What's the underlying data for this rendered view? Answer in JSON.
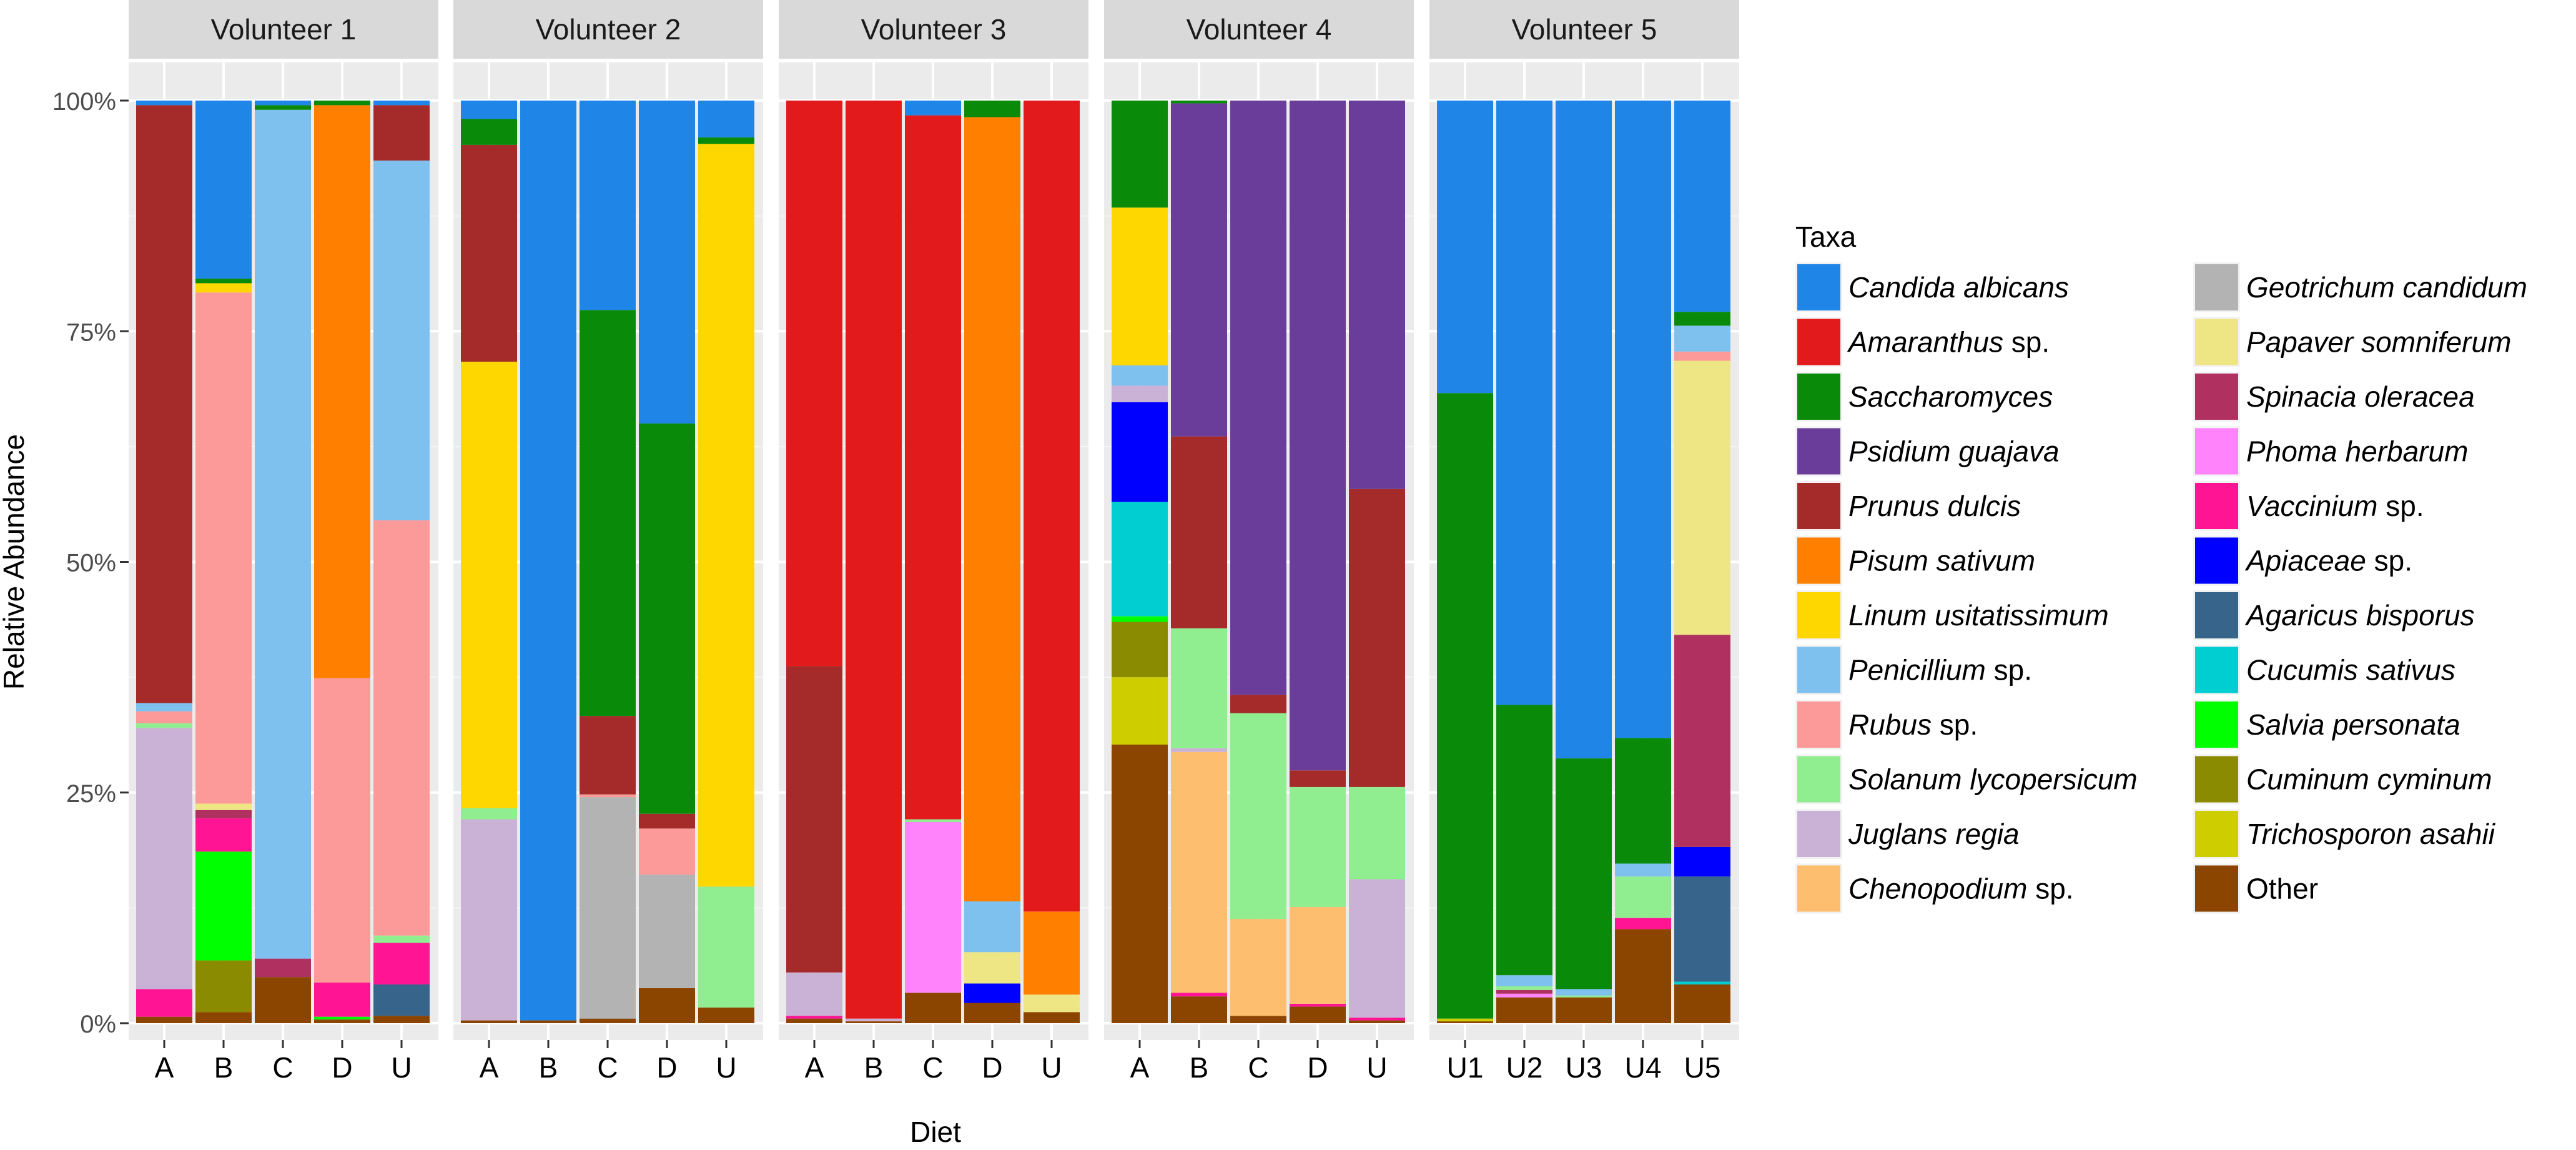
{
  "chart_data": {
    "type": "bar",
    "stacked": true,
    "facets": [
      "Volunteer 1",
      "Volunteer 2",
      "Volunteer 3",
      "Volunteer 4",
      "Volunteer 5"
    ],
    "categories": [
      [
        "A",
        "B",
        "C",
        "D",
        "U"
      ],
      [
        "A",
        "B",
        "C",
        "D",
        "U"
      ],
      [
        "A",
        "B",
        "C",
        "D",
        "U"
      ],
      [
        "A",
        "B",
        "C",
        "D",
        "U"
      ],
      [
        "U1",
        "U2",
        "U3",
        "U4",
        "U5"
      ]
    ],
    "xlabel": "Diet",
    "ylabel": "Relative Abundance",
    "ylim": [
      0,
      100
    ],
    "yticks": [
      "0%",
      "25%",
      "50%",
      "75%",
      "100%"
    ],
    "grid": true,
    "legend_title": "Taxa",
    "legend_position": "right",
    "taxa": [
      {
        "name": "Candida albicans",
        "italic": "Candida albicans",
        "suffix": "",
        "color": "#1F86E8"
      },
      {
        "name": "Amaranthus sp.",
        "italic": "Amaranthus",
        "suffix": " sp.",
        "color": "#E31A1C"
      },
      {
        "name": "Saccharomyces",
        "italic": "Saccharomyces",
        "suffix": "",
        "color": "#098B09"
      },
      {
        "name": "Psidium guajava",
        "italic": "Psidium guajava",
        "suffix": "",
        "color": "#6A3D9A"
      },
      {
        "name": "Prunus dulcis",
        "italic": "Prunus dulcis",
        "suffix": "",
        "color": "#A52A2A"
      },
      {
        "name": "Pisum sativum",
        "italic": "Pisum sativum",
        "suffix": "",
        "color": "#FF7F00"
      },
      {
        "name": "Linum usitatissimum",
        "italic": "Linum usitatissimum",
        "suffix": "",
        "color": "#FFD700"
      },
      {
        "name": "Penicillium sp.",
        "italic": "Penicillium",
        "suffix": " sp.",
        "color": "#7EC0EE"
      },
      {
        "name": "Rubus sp.",
        "italic": "Rubus",
        "suffix": " sp.",
        "color": "#FB9A99"
      },
      {
        "name": "Solanum lycopersicum",
        "italic": "Solanum lycopersicum",
        "suffix": "",
        "color": "#90EE90"
      },
      {
        "name": "Juglans regia",
        "italic": "Juglans regia",
        "suffix": "",
        "color": "#CAB2D6"
      },
      {
        "name": "Chenopodium sp.",
        "italic": "Chenopodium",
        "suffix": " sp.",
        "color": "#FDBF6F"
      },
      {
        "name": "Geotrichum candidum",
        "italic": "Geotrichum candidum",
        "suffix": "",
        "color": "#B3B3B3"
      },
      {
        "name": "Papaver somniferum",
        "italic": "Papaver somniferum",
        "suffix": "",
        "color": "#EEE685"
      },
      {
        "name": "Spinacia oleracea",
        "italic": "Spinacia oleracea",
        "suffix": "",
        "color": "#B03060"
      },
      {
        "name": "Phoma herbarum",
        "italic": "Phoma herbarum",
        "suffix": "",
        "color": "#FF83FA"
      },
      {
        "name": "Vaccinium sp.",
        "italic": "Vaccinium",
        "suffix": " sp.",
        "color": "#FF1493"
      },
      {
        "name": "Apiaceae sp.",
        "italic": "Apiaceae",
        "suffix": " sp.",
        "color": "#0000FF"
      },
      {
        "name": "Agaricus bisporus",
        "italic": "Agaricus bisporus",
        "suffix": "",
        "color": "#36648B"
      },
      {
        "name": "Cucumis sativus",
        "italic": "Cucumis sativus",
        "suffix": "",
        "color": "#00CED1"
      },
      {
        "name": "Salvia personata",
        "italic": "Salvia personata",
        "suffix": "",
        "color": "#00FF00"
      },
      {
        "name": "Cuminum cyminum",
        "italic": "Cuminum cyminum",
        "suffix": "",
        "color": "#8B8B00"
      },
      {
        "name": "Trichosporon asahii",
        "italic": "Trichosporon asahii",
        "suffix": "",
        "color": "#CDCD00"
      },
      {
        "name": "Other",
        "italic": "",
        "suffix": "Other",
        "color": "#8B4500"
      }
    ],
    "bars": [
      [
        {
          "Other": 0.7,
          "Vaccinium sp.": 3.0,
          "Juglans regia": 28.3,
          "Rubus sp.": 1.3,
          "Solanum lycopersicum": 0.5,
          "Penicillium sp.": 0.9,
          "Prunus dulcis": 64.8,
          "Candida albicans": 0.5
        },
        {
          "Other": 1.2,
          "Cuminum cyminum": 5.6,
          "Salvia personata": 11.8,
          "Vaccinium sp.": 3.6,
          "Spinacia oleracea": 0.9,
          "Rubus sp.": 55.4,
          "Papaver somniferum": 0.7,
          "Linum usitatissimum": 1.0,
          "Saccharomyces": 0.5,
          "Candida albicans": 19.3
        },
        {
          "Other": 5.0,
          "Spinacia oleracea": 2.0,
          "Penicillium sp.": 92.0,
          "Saccharomyces": 0.5,
          "Candida albicans": 0.5
        },
        {
          "Other": 0.4,
          "Salvia personata": 0.3,
          "Vaccinium sp.": 3.7,
          "Rubus sp.": 33.0,
          "Pisum sativum": 62.1,
          "Saccharomyces": 0.5
        },
        {
          "Other": 0.8,
          "Agaricus bisporus": 3.4,
          "Vaccinium sp.": 4.5,
          "Solanum lycopersicum": 0.8,
          "Rubus sp.": 45.0,
          "Penicillium sp.": 39.0,
          "Prunus dulcis": 6.0,
          "Candida albicans": 0.5
        }
      ],
      [
        {
          "Other": 0.3,
          "Juglans regia": 21.8,
          "Solanum lycopersicum": 1.2,
          "Linum usitatissimum": 48.4,
          "Prunus dulcis": 23.5,
          "Saccharomyces": 2.8,
          "Candida albicans": 2.0
        },
        {
          "Other": 0.3,
          "Candida albicans": 99.7
        },
        {
          "Other": 0.5,
          "Geotrichum candidum": 24.0,
          "Rubus sp.": 0.3,
          "Prunus dulcis": 8.5,
          "Saccharomyces": 44.0,
          "Candida albicans": 22.7
        },
        {
          "Other": 3.8,
          "Geotrichum candidum": 12.3,
          "Rubus sp.": 5.0,
          "Prunus dulcis": 1.6,
          "Saccharomyces": 42.3,
          "Candida albicans": 35.0
        },
        {
          "Other": 1.7,
          "Solanum lycopersicum": 13.1,
          "Linum usitatissimum": 80.5,
          "Saccharomyces": 0.7,
          "Candida albicans": 4.0
        }
      ],
      [
        {
          "Other": 0.5,
          "Vaccinium sp.": 0.3,
          "Juglans regia": 4.7,
          "Prunus dulcis": 33.2,
          "Amaranthus sp.": 61.3
        },
        {
          "Other": 0.2,
          "Juglans regia": 0.3,
          "Amaranthus sp.": 99.5
        },
        {
          "Other": 3.3,
          "Phoma herbarum": 18.5,
          "Solanum lycopersicum": 0.3,
          "Amaranthus sp.": 76.3,
          "Candida albicans": 1.6
        },
        {
          "Other": 2.2,
          "Apiaceae sp.": 2.1,
          "Papaver somniferum": 3.4,
          "Penicillium sp.": 5.5,
          "Pisum sativum": 85.0,
          "Saccharomyces": 1.8
        },
        {
          "Other": 1.2,
          "Papaver somniferum": 1.9,
          "Pisum sativum": 9.0,
          "Amaranthus sp.": 87.9
        }
      ],
      [
        {
          "Other": 30.2,
          "Trichosporon asahii": 7.3,
          "Cuminum cyminum": 6.0,
          "Cucumis sativus": 12.4,
          "Apiaceae sp.": 10.8,
          "Juglans regia": 1.8,
          "Salvia personata": 0.6,
          "Penicillium sp.": 2.2,
          "Linum usitatissimum": 17.1,
          "Saccharomyces": 11.6
        },
        {
          "Other": 2.9,
          "Vaccinium sp.": 0.4,
          "Juglans regia": 0.4,
          "Chenopodium sp.": 26.1,
          "Solanum lycopersicum": 13.0,
          "Prunus dulcis": 20.8,
          "Psidium guajava": 36.1,
          "Saccharomyces": 0.3
        },
        {
          "Other": 0.8,
          "Chenopodium sp.": 10.5,
          "Solanum lycopersicum": 22.3,
          "Prunus dulcis": 2.0,
          "Psidium guajava": 64.4
        },
        {
          "Other": 1.8,
          "Vaccinium sp.": 0.3,
          "Chenopodium sp.": 10.5,
          "Solanum lycopersicum": 13.0,
          "Prunus dulcis": 1.8,
          "Psidium guajava": 72.6
        },
        {
          "Other": 0.3,
          "Vaccinium sp.": 0.3,
          "Juglans regia": 15.0,
          "Solanum lycopersicum": 10.0,
          "Prunus dulcis": 32.3,
          "Psidium guajava": 42.1
        }
      ],
      [
        {
          "Trichosporon asahii": 0.3,
          "Other": 0.2,
          "Saccharomyces": 67.8,
          "Candida albicans": 31.7
        },
        {
          "Other": 2.8,
          "Spinacia oleracea": 0.4,
          "Phoma herbarum": 0.4,
          "Penicillium sp.": 1.2,
          "Solanum lycopersicum": 0.4,
          "Saccharomyces": 29.3,
          "Candida albicans": 65.5
        },
        {
          "Other": 2.8,
          "Penicillium sp.": 0.7,
          "Solanum lycopersicum": 0.2,
          "Saccharomyces": 25.0,
          "Candida albicans": 71.3
        },
        {
          "Other": 10.2,
          "Vaccinium sp.": 1.2,
          "Solanum lycopersicum": 4.5,
          "Penicillium sp.": 1.4,
          "Saccharomyces": 13.6,
          "Candida albicans": 69.1
        },
        {
          "Other": 4.2,
          "Cucumis sativus": 0.3,
          "Agaricus bisporus": 11.4,
          "Apiaceae sp.": 3.2,
          "Spinacia oleracea": 23.0,
          "Papaver somniferum": 29.7,
          "Rubus sp.": 1.0,
          "Penicillium sp.": 2.8,
          "Saccharomyces": 1.5,
          "Candida albicans": 22.9
        }
      ]
    ]
  }
}
